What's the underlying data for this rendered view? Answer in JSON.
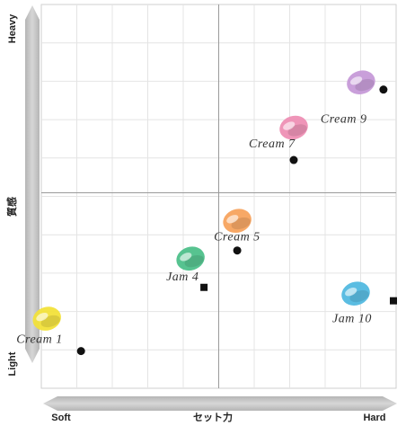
{
  "chart_data": {
    "type": "scatter",
    "title": "",
    "x_axis": {
      "label": "セット力",
      "min_label": "Soft",
      "max_label": "Hard",
      "range": [
        0,
        10
      ]
    },
    "y_axis": {
      "label": "質感",
      "min_label": "Light",
      "max_label": "Heavy",
      "range": [
        0,
        10
      ]
    },
    "grid": true,
    "quadrant_lines": true,
    "points": [
      {
        "label": "Cream 1",
        "x": 0.6,
        "y": 0.6,
        "marker": "circle",
        "color": "#f2e23a"
      },
      {
        "label": "Jam 4",
        "x": 4.3,
        "y": 2.5,
        "marker": "square",
        "color": "#4ec08a"
      },
      {
        "label": "Cream 5",
        "x": 5.3,
        "y": 3.6,
        "marker": "circle",
        "color": "#f7a35e"
      },
      {
        "label": "Cream 7",
        "x": 7.0,
        "y": 6.3,
        "marker": "circle",
        "color": "#ee8fb4"
      },
      {
        "label": "Cream 9",
        "x": 9.7,
        "y": 8.4,
        "marker": "circle",
        "color": "#c69ad8"
      },
      {
        "label": "Jam 10",
        "x": 10.0,
        "y": 2.1,
        "marker": "square",
        "color": "#52b9e0"
      }
    ]
  }
}
